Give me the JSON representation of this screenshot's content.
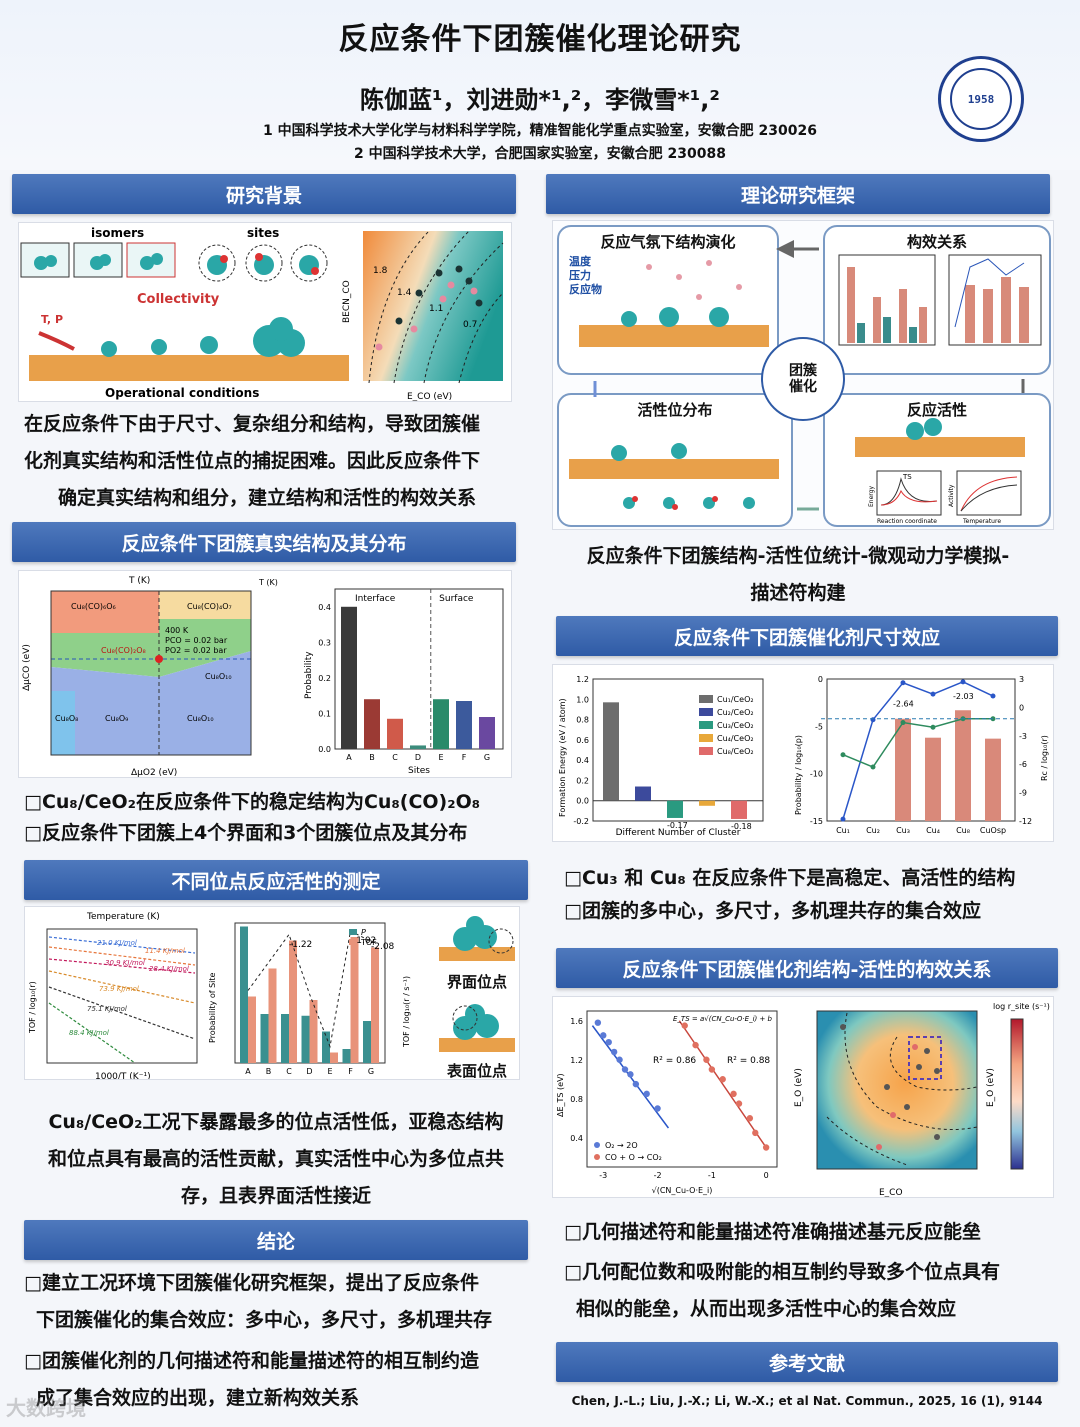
{
  "header": {
    "title": "反应条件下团簇催化理论研究",
    "authors": "陈伽蓝¹，刘进勋*¹,²，李微雪*¹,²",
    "aff1": "1 中国科学技术大学化学与材料科学学院，精准智能化学重点实验室，安徽合肥 230026",
    "aff2": "2 中国科学技术大学，合肥国家实验室，安徽合肥 230088",
    "logo_year": "1958"
  },
  "sections": {
    "bg": "研究背景",
    "struct": "反应条件下团簇真实结构及其分布",
    "activity": "不同位点反应活性的测定",
    "conclusion": "结论",
    "framework": "理论研究框架",
    "size": "反应条件下团簇催化剂尺寸效应",
    "relation": "反应条件下团簇催化剂结构-活性的构效关系",
    "refs": "参考文献"
  },
  "bg": {
    "isomers": "isomers",
    "sites": "sites",
    "collectivity": "Collectivity",
    "tp": "T, P",
    "operational": "Operational conditions",
    "text1": "在反应条件下由于尺寸、复杂组分和结构，导致团簇催",
    "text2": "化剂真实结构和活性位点的捕捉困难。因此反应条件下",
    "text3": "确定真实结构和组分，建立结构和活性的构效关系",
    "contour_xlabel": "E_CO (eV)",
    "contour_ylabel": "BECN_CO",
    "contour_labels": [
      "1.8",
      "1.4",
      "1.1",
      "0.7"
    ]
  },
  "struct": {
    "bullet1": "□Cu₈/CeO₂在反应条件下的稳定结构为Cu₈(CO)₂O₈",
    "bullet2": "□反应条件下团簇上4个界面和3个团簇位点及其分布",
    "phase": {
      "xlabel": "ΔμO2 (eV)",
      "ylabel": "ΔμCO (eV)",
      "toplabel": "T (K)",
      "rightlabel": "T (K)",
      "regions": [
        "Cu₈(CO)₆O₆",
        "Cu₈(CO)₄O₇",
        "Cu₈(CO)₂O₈",
        "Cu₈O₁₀",
        "Cu₈O₈",
        "Cu₈O₉",
        "Cu₈O₁₀"
      ],
      "annot": [
        "400 K",
        "PCO = 0.02 bar",
        "PO2 = 0.02 bar"
      ]
    },
    "sites_chart": {
      "ylabel": "Probability",
      "xlabel": "Sites",
      "interface": "Interface",
      "surface": "Surface"
    }
  },
  "activity": {
    "arrh": {
      "toplabel": "Temperature (K)",
      "ylabel": "TOF / log₁₀(r)",
      "xlabel": "1000/T (K⁻¹)",
      "ea": [
        "21.0 KJ/mol",
        "11.4 KJ/mol",
        "30.9 KJ/mol",
        "28.4 KJ/mol",
        "73.9 KJ/mol",
        "75.1 KJ/mol",
        "88.4 KJ/mol"
      ]
    },
    "pt": {
      "ylabel": "Probability of Site",
      "ylabel2": "TOF / log₁₀(r / s⁻¹)",
      "legend_p": "P",
      "legend_tof": "TOF",
      "labels": [
        "-1.22",
        "-1.02",
        "-2.08"
      ]
    },
    "interface_site": "界面位点",
    "surface_site": "表面位点",
    "text1": "Cu₈/CeO₂工况下暴露最多的位点活性低，亚稳态结构",
    "text2": "和位点具有最高的活性贡献，真实活性中心为多位点共",
    "text3": "存，且表界面活性接近"
  },
  "conclusion": {
    "l1": "□建立工况环境下团簇催化研究框架，提出了反应条件",
    "l2": "下团簇催化的集合效应：多中心，多尺寸，多机理共存",
    "l3": "□团簇催化剂的几何描述符和能量描述符的相互制约造",
    "l4": "成了集合效应的出现，建立新构效关系"
  },
  "framework": {
    "p1": "反应气氛下结构演化",
    "p1_side": [
      "温度",
      "压力",
      "反应物"
    ],
    "p2": "构效关系",
    "p3": "活性位分布",
    "p4": "反应活性",
    "center": [
      "团簇",
      "催化"
    ],
    "energy": "Energy",
    "rc": "Reaction coordinate",
    "act": "Activity",
    "temp": "Temperature",
    "ts": "TS",
    "text1": "反应条件下团簇结构-活性位统计-微观动力学模拟-",
    "text2": "描述符构建"
  },
  "size": {
    "fe": {
      "ylabel": "Formation Energy (eV / atom)",
      "xlabel": "Different Number of Cluster",
      "legend": [
        "Cu₁/CeO₂",
        "Cu₂/CeO₂",
        "Cu₃/CeO₂",
        "Cu₄/CeO₂",
        "Cu₈/CeO₂"
      ],
      "neg_labels": [
        "-0.17",
        "-0.18"
      ]
    },
    "prob": {
      "ylabel": "Probability / log₁₀(p)",
      "ylabel2": "Rc / log₁₀(r)",
      "cats": [
        "Cu₁",
        "Cu₂",
        "Cu₃",
        "Cu₄",
        "Cu₈",
        "CuOsp"
      ],
      "labels": [
        "-2.64",
        "-2.03"
      ]
    },
    "bullet1": "□Cu₃ 和 Cu₈ 在反应条件下是高稳定、高活性的结构",
    "bullet2": "□团簇的多中心，多尺寸，多机理共存的集合效应"
  },
  "relation": {
    "scatter": {
      "ylabel": "ΔE_TS (eV)",
      "xlabel": "√(CN_Cu-O·E_i)",
      "formula": "E_TS = a√(CN_Cu-O·E_i) + b",
      "r2a": "R² = 0.86",
      "r2b": "R² = 0.88",
      "legend1": "O₂ → 2O",
      "legend2": "CO + O → CO₂"
    },
    "map": {
      "xlabel": "E_CO",
      "ylabel": "E_O (eV)",
      "ylabel2": "E_O (eV)",
      "cbar": "log r_site (s⁻¹)"
    },
    "bullet1": "□几何描述符和能量描述符准确描述基元反应能垒",
    "bullet2": "□几何配位数和吸附能的相互制约导致多个位点具有",
    "bullet3": "相似的能垒，从而出现多活性中心的集合效应"
  },
  "refs": {
    "text": "Chen, J.-L.; Liu, J.-X.; Li, W.-X.; et al Nat. Commun., 2025, 16 (1), 9144"
  },
  "watermark": "大数跨境"
}
